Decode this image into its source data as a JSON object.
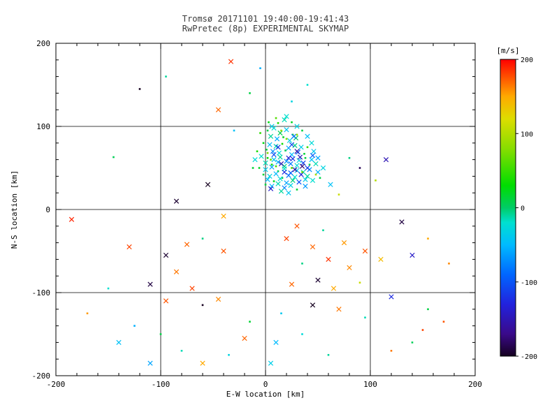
{
  "window": {
    "background": "#ffffff",
    "axis_color": "#000000",
    "title_color": "#3a3a3a"
  },
  "chart_data": {
    "type": "scatter",
    "title": "Tromsø 20171101 19:40:00-19:41:43",
    "subtitle": "RwPretec (8p) EXPERIMENTAL SKYMAP",
    "xlabel": "E-W location [km]",
    "ylabel": "N-S location [km]",
    "xlim": [
      -200,
      200
    ],
    "ylim": [
      -200,
      200
    ],
    "xticks": [
      -200,
      -100,
      0,
      100,
      200
    ],
    "yticks": [
      -200,
      -100,
      0,
      100,
      200
    ],
    "grid_values": [
      -100,
      0,
      100
    ],
    "minor_tick_step": 20,
    "grid": true,
    "legend_position": "right-colorbar",
    "colorbar": {
      "label": "[m/s]",
      "label_color": "#ff0000",
      "min": -200,
      "max": 200,
      "ticks": [
        200,
        100,
        0,
        -100,
        -200
      ]
    },
    "colormap": [
      [
        -200,
        "#15001f"
      ],
      [
        -170,
        "#3a0a8a"
      ],
      [
        -130,
        "#2222dd"
      ],
      [
        -90,
        "#0066ff"
      ],
      [
        -50,
        "#00bbff"
      ],
      [
        -20,
        "#00e0d0"
      ],
      [
        0,
        "#00cc66"
      ],
      [
        30,
        "#00dd00"
      ],
      [
        80,
        "#88dd00"
      ],
      [
        120,
        "#dddd00"
      ],
      [
        150,
        "#ffaa00"
      ],
      [
        175,
        "#ff5500"
      ],
      [
        200,
        "#ff0000"
      ]
    ],
    "points": [
      [
        2,
        95,
        10,
        "d"
      ],
      [
        8,
        98,
        -20,
        "x"
      ],
      [
        14,
        92,
        5,
        "x"
      ],
      [
        20,
        96,
        -40,
        "x"
      ],
      [
        26,
        90,
        15,
        "d"
      ],
      [
        5,
        88,
        -10,
        "x"
      ],
      [
        11,
        85,
        -55,
        "x"
      ],
      [
        17,
        87,
        20,
        "d"
      ],
      [
        23,
        83,
        -30,
        "x"
      ],
      [
        29,
        86,
        0,
        "x"
      ],
      [
        -2,
        80,
        25,
        "d"
      ],
      [
        4,
        78,
        -45,
        "x"
      ],
      [
        10,
        76,
        -15,
        "x"
      ],
      [
        16,
        79,
        35,
        "d"
      ],
      [
        22,
        74,
        -60,
        "x"
      ],
      [
        28,
        77,
        -5,
        "x"
      ],
      [
        34,
        75,
        -35,
        "x"
      ],
      [
        1,
        72,
        10,
        "d"
      ],
      [
        7,
        70,
        -70,
        "x"
      ],
      [
        13,
        68,
        -25,
        "x"
      ],
      [
        19,
        71,
        5,
        "d"
      ],
      [
        25,
        66,
        -50,
        "x"
      ],
      [
        31,
        69,
        -90,
        "x"
      ],
      [
        37,
        67,
        15,
        "d"
      ],
      [
        -4,
        64,
        -20,
        "x"
      ],
      [
        2,
        62,
        30,
        "d"
      ],
      [
        8,
        60,
        -40,
        "x"
      ],
      [
        14,
        63,
        -10,
        "x"
      ],
      [
        20,
        58,
        -65,
        "x"
      ],
      [
        26,
        61,
        -120,
        "x"
      ],
      [
        32,
        59,
        -30,
        "x"
      ],
      [
        38,
        62,
        10,
        "d"
      ],
      [
        44,
        60,
        -45,
        "x"
      ],
      [
        0,
        56,
        -15,
        "x"
      ],
      [
        6,
        54,
        25,
        "d"
      ],
      [
        12,
        57,
        -55,
        "x"
      ],
      [
        18,
        52,
        -5,
        "x"
      ],
      [
        24,
        55,
        -80,
        "x"
      ],
      [
        30,
        53,
        -25,
        "x"
      ],
      [
        36,
        56,
        -110,
        "x"
      ],
      [
        42,
        54,
        5,
        "d"
      ],
      [
        -6,
        50,
        20,
        "d"
      ],
      [
        0,
        48,
        -35,
        "x"
      ],
      [
        6,
        51,
        -60,
        "x"
      ],
      [
        12,
        46,
        10,
        "d"
      ],
      [
        18,
        49,
        -20,
        "x"
      ],
      [
        24,
        44,
        -95,
        "x"
      ],
      [
        30,
        47,
        -40,
        "x"
      ],
      [
        36,
        45,
        -15,
        "x"
      ],
      [
        42,
        48,
        -70,
        "x"
      ],
      [
        -2,
        42,
        15,
        "d"
      ],
      [
        4,
        40,
        -30,
        "x"
      ],
      [
        10,
        43,
        -50,
        "x"
      ],
      [
        16,
        38,
        5,
        "d"
      ],
      [
        22,
        41,
        -85,
        "x"
      ],
      [
        28,
        39,
        -20,
        "x"
      ],
      [
        34,
        42,
        -130,
        "x"
      ],
      [
        40,
        40,
        -10,
        "x"
      ],
      [
        2,
        36,
        -45,
        "x"
      ],
      [
        8,
        34,
        20,
        "d"
      ],
      [
        14,
        37,
        -25,
        "x"
      ],
      [
        20,
        32,
        -60,
        "x"
      ],
      [
        26,
        35,
        -5,
        "x"
      ],
      [
        32,
        33,
        -100,
        "x"
      ],
      [
        38,
        36,
        -35,
        "x"
      ],
      [
        0,
        30,
        10,
        "d"
      ],
      [
        6,
        28,
        -50,
        "x"
      ],
      [
        12,
        31,
        -15,
        "x"
      ],
      [
        18,
        26,
        -75,
        "x"
      ],
      [
        24,
        29,
        -30,
        "x"
      ],
      [
        -8,
        70,
        40,
        "d"
      ],
      [
        -10,
        60,
        -25,
        "x"
      ],
      [
        -12,
        50,
        15,
        "d"
      ],
      [
        46,
        70,
        -40,
        "x"
      ],
      [
        48,
        55,
        -15,
        "x"
      ],
      [
        50,
        62,
        -60,
        "x"
      ],
      [
        44,
        80,
        -25,
        "x"
      ],
      [
        40,
        88,
        -45,
        "x"
      ],
      [
        35,
        95,
        10,
        "d"
      ],
      [
        30,
        100,
        -30,
        "x"
      ],
      [
        25,
        105,
        20,
        "d"
      ],
      [
        18,
        108,
        -15,
        "x"
      ],
      [
        12,
        104,
        40,
        "d"
      ],
      [
        6,
        100,
        -35,
        "x"
      ],
      [
        45,
        35,
        -20,
        "x"
      ],
      [
        50,
        45,
        -55,
        "x"
      ],
      [
        15,
        22,
        -10,
        "x"
      ],
      [
        22,
        20,
        -40,
        "x"
      ],
      [
        30,
        24,
        15,
        "d"
      ],
      [
        38,
        28,
        -65,
        "x"
      ],
      [
        10,
        110,
        60,
        "d"
      ],
      [
        20,
        112,
        -20,
        "x"
      ],
      [
        3,
        105,
        25,
        "d"
      ],
      [
        -5,
        92,
        45,
        "d"
      ],
      [
        55,
        50,
        -30,
        "x"
      ],
      [
        52,
        38,
        10,
        "d"
      ],
      [
        5,
        25,
        -140,
        "x"
      ],
      [
        28,
        48,
        -160,
        "x"
      ],
      [
        35,
        52,
        -175,
        "x"
      ],
      [
        15,
        55,
        -150,
        "x"
      ],
      [
        22,
        62,
        -135,
        "x"
      ],
      [
        30,
        70,
        -155,
        "x"
      ],
      [
        12,
        75,
        -120,
        "x"
      ],
      [
        25,
        78,
        -110,
        "x"
      ],
      [
        18,
        45,
        -125,
        "x"
      ],
      [
        33,
        63,
        -145,
        "x"
      ],
      [
        8,
        66,
        -105,
        "x"
      ],
      [
        40,
        50,
        -115,
        "x"
      ],
      [
        45,
        65,
        -95,
        "x"
      ],
      [
        27,
        88,
        -85,
        "x"
      ],
      [
        20,
        85,
        80,
        "d"
      ],
      [
        15,
        95,
        90,
        "d"
      ],
      [
        25,
        50,
        60,
        "d"
      ],
      [
        35,
        45,
        70,
        "d"
      ],
      [
        10,
        52,
        55,
        "d"
      ],
      [
        5,
        60,
        65,
        "d"
      ],
      [
        40,
        75,
        50,
        "d"
      ],
      [
        30,
        90,
        85,
        "d"
      ],
      [
        48,
        42,
        95,
        "d"
      ],
      [
        2,
        68,
        75,
        "d"
      ],
      [
        -33,
        178,
        185,
        "x"
      ],
      [
        -95,
        160,
        -10,
        "d"
      ],
      [
        -120,
        145,
        -200,
        "d"
      ],
      [
        -145,
        63,
        5,
        "d"
      ],
      [
        -185,
        -12,
        190,
        "x"
      ],
      [
        -130,
        -45,
        180,
        "x"
      ],
      [
        -95,
        -55,
        -195,
        "x"
      ],
      [
        -75,
        -42,
        170,
        "x"
      ],
      [
        -60,
        -35,
        -5,
        "d"
      ],
      [
        -40,
        -50,
        175,
        "x"
      ],
      [
        -85,
        -75,
        165,
        "x"
      ],
      [
        -110,
        -90,
        -190,
        "x"
      ],
      [
        -70,
        -95,
        180,
        "x"
      ],
      [
        -95,
        -110,
        175,
        "x"
      ],
      [
        -60,
        -115,
        -200,
        "d"
      ],
      [
        -45,
        -108,
        160,
        "x"
      ],
      [
        -125,
        -140,
        -55,
        "d"
      ],
      [
        -100,
        -150,
        10,
        "d"
      ],
      [
        -140,
        -160,
        -45,
        "x"
      ],
      [
        -80,
        -170,
        -15,
        "d"
      ],
      [
        -60,
        -185,
        150,
        "x"
      ],
      [
        -35,
        -175,
        -30,
        "d"
      ],
      [
        -110,
        -185,
        -60,
        "x"
      ],
      [
        30,
        -20,
        175,
        "x"
      ],
      [
        55,
        -25,
        -10,
        "d"
      ],
      [
        20,
        -35,
        180,
        "x"
      ],
      [
        45,
        -45,
        170,
        "x"
      ],
      [
        75,
        -40,
        155,
        "x"
      ],
      [
        95,
        -50,
        175,
        "x"
      ],
      [
        60,
        -60,
        185,
        "x"
      ],
      [
        35,
        -65,
        -5,
        "d"
      ],
      [
        80,
        -70,
        160,
        "x"
      ],
      [
        50,
        -85,
        -195,
        "x"
      ],
      [
        25,
        -90,
        170,
        "x"
      ],
      [
        65,
        -95,
        150,
        "x"
      ],
      [
        90,
        -88,
        110,
        "d"
      ],
      [
        110,
        -60,
        140,
        "x"
      ],
      [
        120,
        -105,
        -125,
        "x"
      ],
      [
        45,
        -115,
        -200,
        "x"
      ],
      [
        70,
        -120,
        165,
        "x"
      ],
      [
        15,
        -125,
        -40,
        "d"
      ],
      [
        95,
        -130,
        -15,
        "d"
      ],
      [
        140,
        -55,
        -140,
        "x"
      ],
      [
        155,
        -35,
        150,
        "d"
      ],
      [
        105,
        35,
        100,
        "d"
      ],
      [
        90,
        50,
        -185,
        "d"
      ],
      [
        80,
        62,
        -5,
        "d"
      ],
      [
        70,
        18,
        110,
        "d"
      ],
      [
        62,
        30,
        -45,
        "x"
      ],
      [
        115,
        60,
        -150,
        "x"
      ],
      [
        140,
        -160,
        5,
        "d"
      ],
      [
        120,
        -170,
        165,
        "d"
      ],
      [
        170,
        -135,
        175,
        "d"
      ],
      [
        155,
        -120,
        10,
        "d"
      ],
      [
        35,
        -150,
        -25,
        "d"
      ],
      [
        10,
        -160,
        -50,
        "x"
      ],
      [
        -20,
        -155,
        170,
        "x"
      ],
      [
        -15,
        -135,
        15,
        "d"
      ],
      [
        5,
        -185,
        -35,
        "x"
      ],
      [
        60,
        -175,
        -10,
        "d"
      ],
      [
        -55,
        30,
        -200,
        "x"
      ],
      [
        -85,
        10,
        -195,
        "x"
      ],
      [
        -40,
        -8,
        150,
        "x"
      ],
      [
        -150,
        -95,
        -20,
        "d"
      ],
      [
        -170,
        -125,
        155,
        "d"
      ],
      [
        25,
        130,
        -30,
        "d"
      ],
      [
        -45,
        120,
        170,
        "x"
      ],
      [
        -30,
        95,
        -45,
        "d"
      ],
      [
        -15,
        140,
        10,
        "d"
      ],
      [
        40,
        150,
        -20,
        "d"
      ],
      [
        -5,
        170,
        -55,
        "d"
      ],
      [
        130,
        -15,
        -190,
        "x"
      ],
      [
        175,
        -65,
        160,
        "d"
      ],
      [
        150,
        -145,
        180,
        "d"
      ]
    ]
  }
}
